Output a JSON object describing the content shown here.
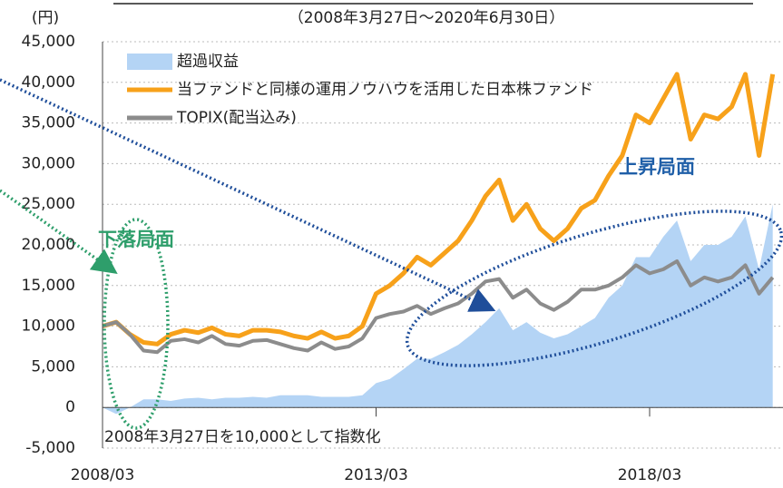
{
  "chart_data": {
    "type": "line",
    "subtitle": "（2008年3月27日～2020年6月30日）",
    "y_label": "(円)",
    "annotations": [
      "下落局面",
      "上昇局面",
      "2008年3月27日を10,000として指数化"
    ],
    "x": [
      "2008/03",
      "2008/06",
      "2008/09",
      "2008/12",
      "2009/03",
      "2009/06",
      "2009/09",
      "2009/12",
      "2010/03",
      "2010/06",
      "2010/09",
      "2010/12",
      "2011/03",
      "2011/06",
      "2011/09",
      "2011/12",
      "2012/03",
      "2012/06",
      "2012/09",
      "2012/12",
      "2013/03",
      "2013/06",
      "2013/09",
      "2013/12",
      "2014/03",
      "2014/06",
      "2014/09",
      "2014/12",
      "2015/03",
      "2015/06",
      "2015/09",
      "2015/12",
      "2016/03",
      "2016/06",
      "2016/09",
      "2016/12",
      "2017/03",
      "2017/06",
      "2017/09",
      "2017/12",
      "2018/03",
      "2018/06",
      "2018/09",
      "2018/12",
      "2019/03",
      "2019/06",
      "2019/09",
      "2019/12",
      "2020/03",
      "2020/06"
    ],
    "series": [
      {
        "name": "超過収益",
        "color": "#b4d4f5",
        "kind": "area",
        "values": [
          0,
          -800,
          0,
          1000,
          1000,
          800,
          1100,
          1200,
          1000,
          1200,
          1200,
          1300,
          1200,
          1500,
          1500,
          1500,
          1300,
          1300,
          1300,
          1500,
          3000,
          3500,
          4700,
          6000,
          6000,
          6800,
          7700,
          9000,
          10500,
          12200,
          9500,
          10500,
          9200,
          8500,
          9000,
          10000,
          11000,
          13500,
          15000,
          18500,
          18500,
          21000,
          23000,
          18000,
          20000,
          20000,
          21000,
          23500,
          17000,
          25000
        ]
      },
      {
        "name": "当ファンドと同様の運用ノウハウを活用した日本株ファンド",
        "color": "#f7a11a",
        "kind": "line",
        "values": [
          10000,
          10500,
          9000,
          8000,
          7800,
          9000,
          9500,
          9200,
          9800,
          9000,
          8800,
          9500,
          9500,
          9300,
          8800,
          8500,
          9300,
          8500,
          8800,
          10000,
          14000,
          15000,
          16500,
          18500,
          17500,
          19000,
          20500,
          23000,
          26000,
          28000,
          23000,
          25000,
          22000,
          20500,
          22000,
          24500,
          25500,
          28500,
          31000,
          36000,
          35000,
          38000,
          41000,
          33000,
          36000,
          35500,
          37000,
          41000,
          31000,
          41000
        ]
      },
      {
        "name": "TOPIX(配当込み)",
        "color": "#8c8c8c",
        "kind": "line",
        "values": [
          10000,
          10500,
          9000,
          7000,
          6800,
          8200,
          8400,
          8000,
          8800,
          7800,
          7600,
          8200,
          8300,
          7800,
          7300,
          7000,
          8000,
          7200,
          7500,
          8500,
          11000,
          11500,
          11800,
          12500,
          11500,
          12200,
          12800,
          14000,
          15500,
          15800,
          13500,
          14500,
          12800,
          12000,
          13000,
          14500,
          14500,
          15000,
          16000,
          17500,
          16500,
          17000,
          18000,
          15000,
          16000,
          15500,
          16000,
          17500,
          14000,
          16000
        ]
      }
    ],
    "ylim": [
      -5000,
      45000
    ],
    "yticks": [
      {
        "value": -5000,
        "label": "-5,000"
      },
      0,
      {
        "value": 5000,
        "label": "5,000"
      },
      {
        "value": 10000,
        "label": "10,000"
      },
      {
        "value": 15000,
        "label": "15,000"
      },
      {
        "value": 20000,
        "label": "20,000"
      },
      {
        "value": 25000,
        "label": "25,000"
      },
      {
        "value": 30000,
        "label": "30,000"
      },
      {
        "value": 35000,
        "label": "35,000"
      },
      {
        "value": 40000,
        "label": "40,000"
      },
      {
        "value": 45000,
        "label": "45,000"
      }
    ],
    "xticks": [
      "2008/03",
      "2013/03",
      "2018/03"
    ],
    "grid": true
  }
}
